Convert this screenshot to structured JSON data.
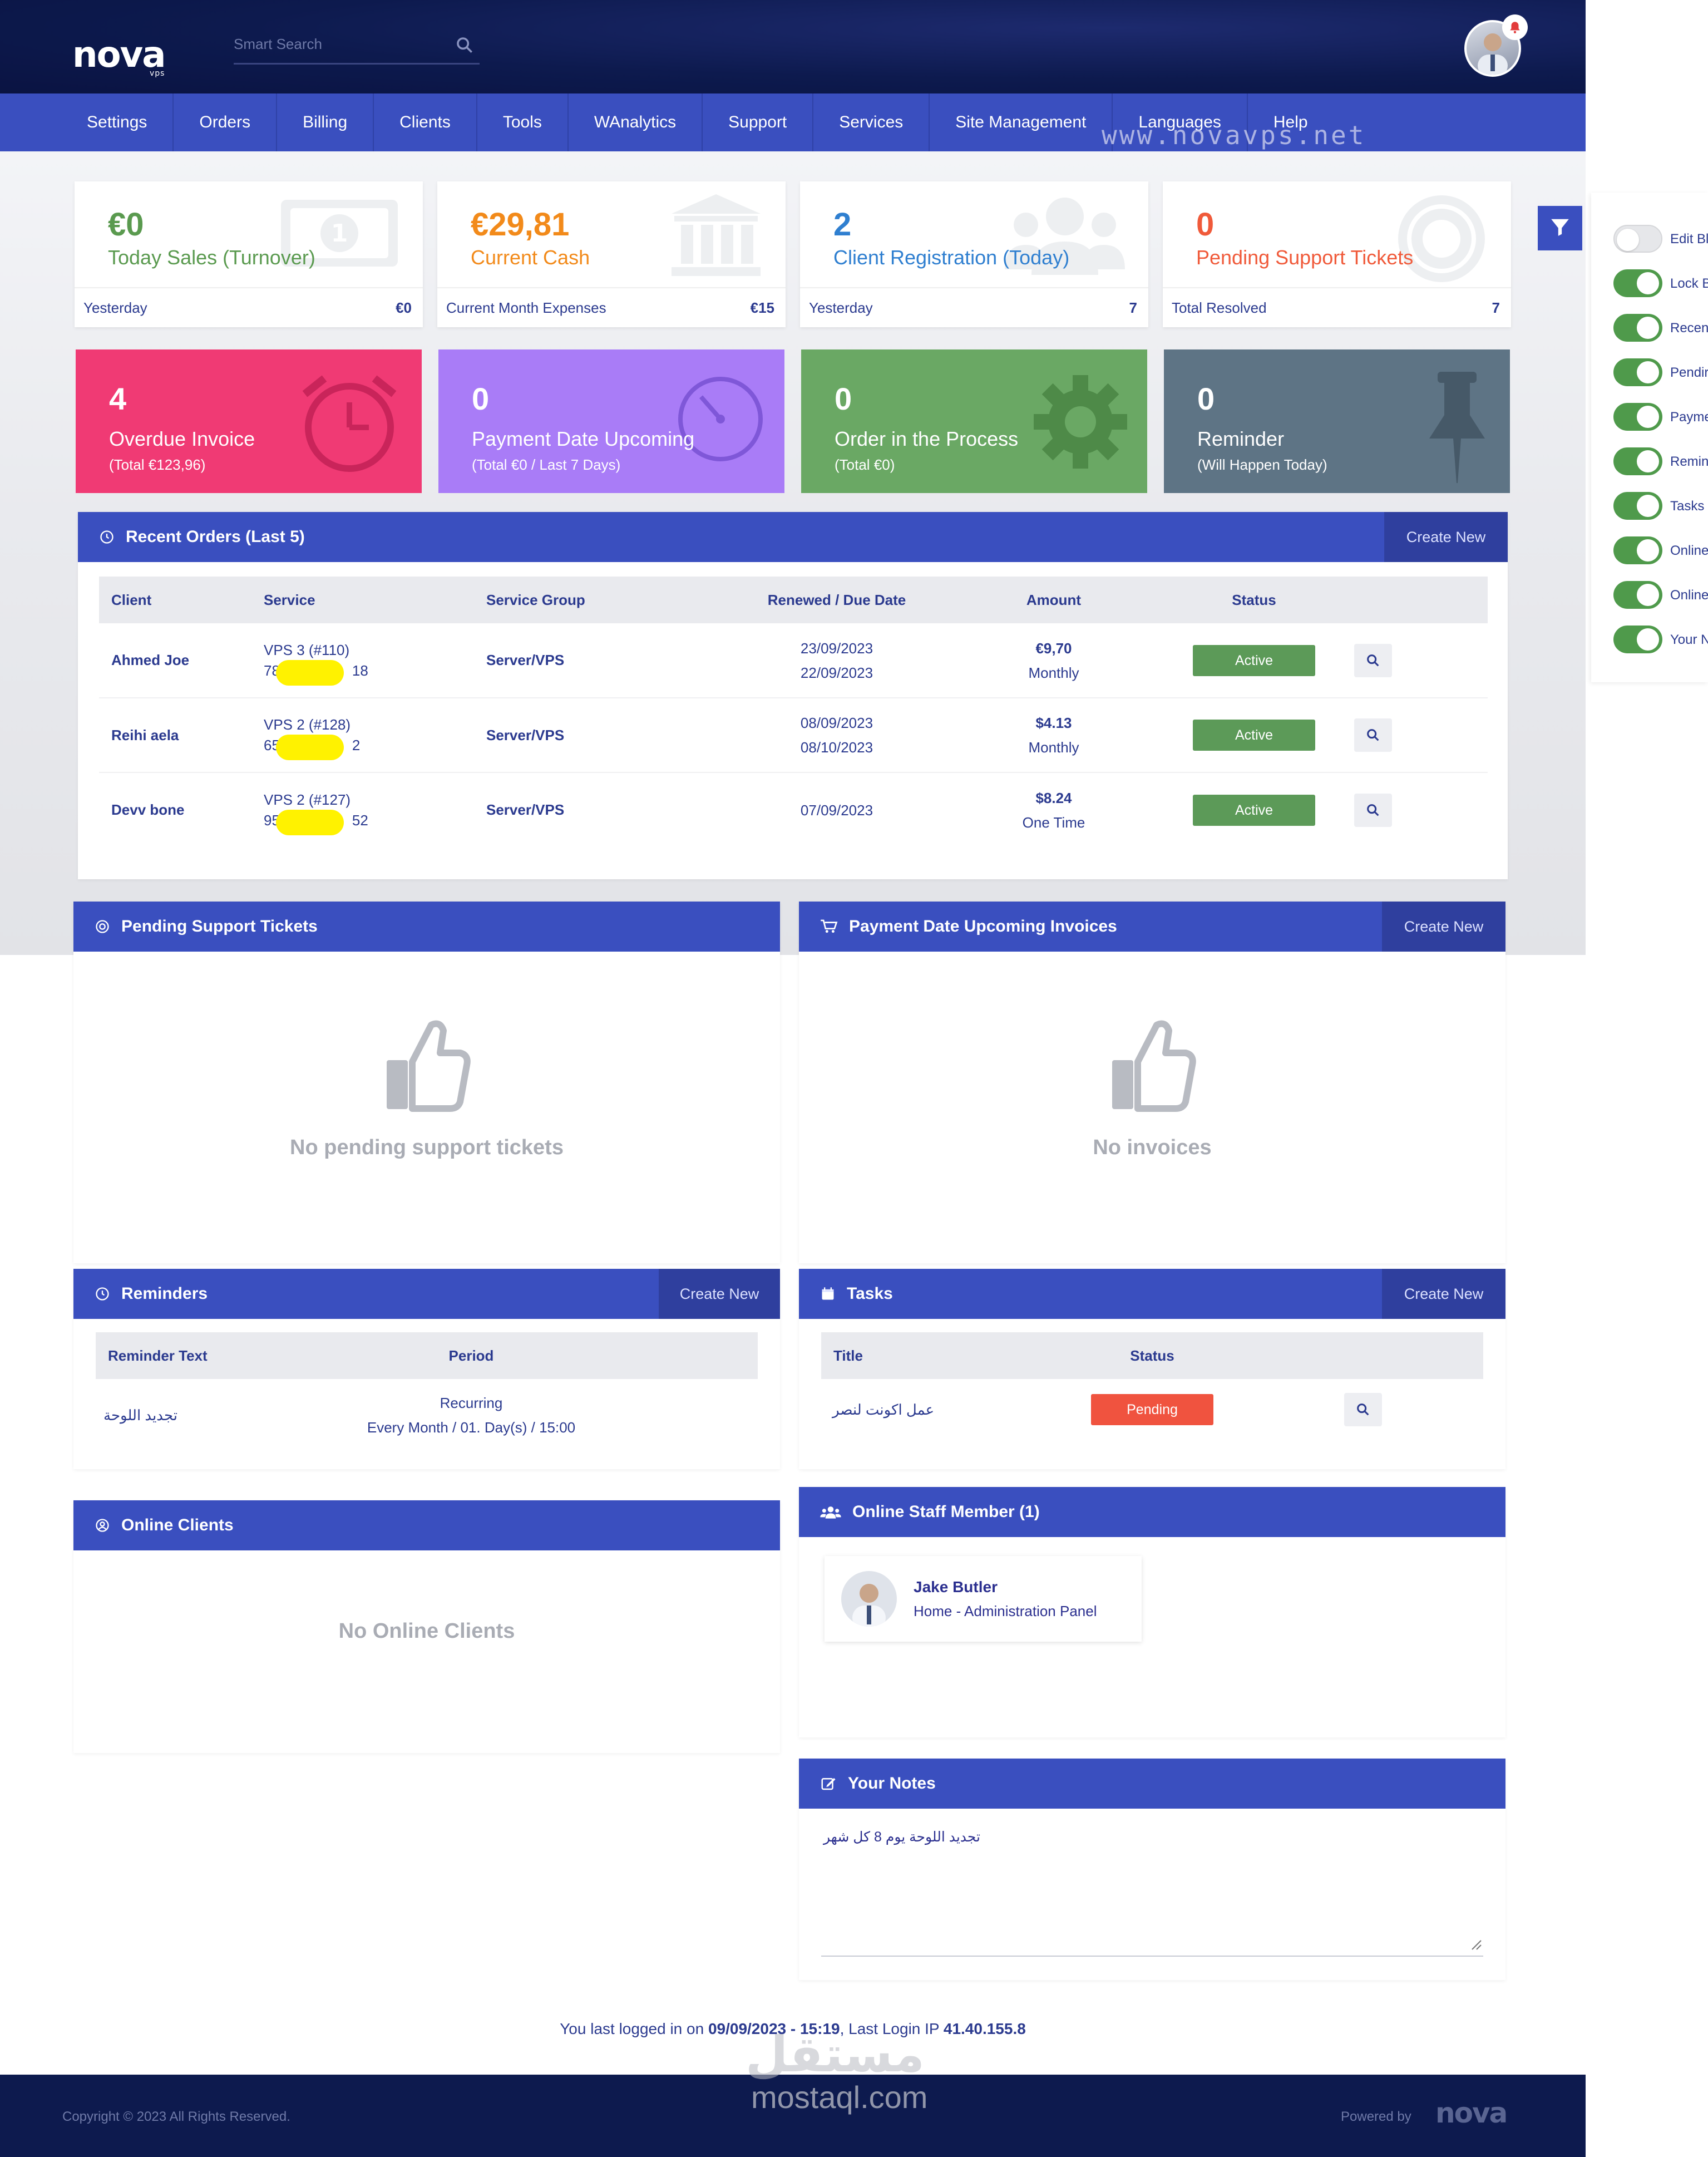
{
  "header": {
    "logo_text": "nova",
    "logo_sub": "vps",
    "search_placeholder": "Smart Search",
    "watermark": "www.novavps.net"
  },
  "nav": {
    "items": [
      "Settings",
      "Orders",
      "Billing",
      "Clients",
      "Tools",
      "WAnalytics",
      "Support",
      "Services",
      "Site Management",
      "Languages",
      "Help"
    ]
  },
  "stats": [
    {
      "value": "€0",
      "label": "Today Sales (Turnover)",
      "foot_label": "Yesterday",
      "foot_value": "€0",
      "color": "#5a9a4f"
    },
    {
      "value": "€29,81",
      "label": "Current Cash",
      "foot_label": "Current Month Expenses",
      "foot_value": "€15",
      "color": "#f28a1a"
    },
    {
      "value": "2",
      "label": "Client Registration (Today)",
      "foot_label": "Yesterday",
      "foot_value": "7",
      "color": "#2f7fd0"
    },
    {
      "value": "0",
      "label": "Pending Support Tickets",
      "foot_label": "Total Resolved",
      "foot_value": "7",
      "color": "#f05a3a"
    }
  ],
  "color_cards": [
    {
      "value": "4",
      "label": "Overdue Invoice",
      "sub": "(Total €123,96)",
      "color": "#f03a74"
    },
    {
      "value": "0",
      "label": "Payment Date Upcoming",
      "sub": "(Total €0 / Last 7 Days)",
      "color": "#a97cf7"
    },
    {
      "value": "0",
      "label": "Order in the Process",
      "sub": "(Total €0)",
      "color": "#6aa864"
    },
    {
      "value": "0",
      "label": "Reminder",
      "sub": "(Will Happen Today)",
      "color": "#5e7485"
    }
  ],
  "recent_orders": {
    "title": "Recent Orders (Last 5)",
    "create": "Create New",
    "columns": [
      "Client",
      "Service",
      "Service Group",
      "Renewed / Due Date",
      "Amount",
      "Status"
    ],
    "rows": [
      {
        "client": "Ahmed Joe",
        "service": "VPS 3 (#110)",
        "ip_start": "78",
        "ip_end": "18",
        "group": "Server/VPS",
        "date1": "23/09/2023",
        "date2": "22/09/2023",
        "amount": "€9,70",
        "cycle": "Monthly",
        "status": "Active"
      },
      {
        "client": "Reihi aela",
        "service": "VPS 2 (#128)",
        "ip_start": "65",
        "ip_end": "2",
        "group": "Server/VPS",
        "date1": "08/09/2023",
        "date2": "08/10/2023",
        "amount": "$4.13",
        "cycle": "Monthly",
        "status": "Active"
      },
      {
        "client": "Devv bone",
        "service": "VPS 2 (#127)",
        "ip_start": "95",
        "ip_end": "52",
        "group": "Server/VPS",
        "date1": "07/09/2023",
        "date2": "",
        "amount": "$8.24",
        "cycle": "One Time",
        "status": "Active"
      }
    ]
  },
  "pending_tickets": {
    "title": "Pending Support Tickets",
    "empty": "No pending support tickets"
  },
  "upcoming_invoices": {
    "title": "Payment Date Upcoming Invoices",
    "create": "Create New",
    "empty": "No invoices"
  },
  "reminders": {
    "title": "Reminders",
    "create": "Create New",
    "columns": [
      "Reminder Text",
      "Period"
    ],
    "rows": [
      {
        "text": "تجديد اللوحة",
        "period1": "Recurring",
        "period2": "Every Month / 01. Day(s) / 15:00"
      }
    ]
  },
  "tasks": {
    "title": "Tasks",
    "create": "Create New",
    "columns": [
      "Title",
      "Status"
    ],
    "rows": [
      {
        "title": "عمل اكونت لنصر",
        "status": "Pending"
      }
    ]
  },
  "online_clients": {
    "title": "Online Clients",
    "empty": "No Online Clients"
  },
  "online_staff": {
    "title": "Online Staff Member (1)",
    "name": "Jake Butler",
    "location": "Home - Administration Panel"
  },
  "notes": {
    "title": "Your Notes",
    "text": "تجديد اللوحة يوم 8 كل شهر"
  },
  "last_login": {
    "prefix": "You last logged in on ",
    "datetime": "09/09/2023 - 15:19",
    "middle": ", Last Login IP ",
    "ip": "41.40.155.8"
  },
  "toggles": [
    {
      "label": "Edit Bl",
      "on": false
    },
    {
      "label": "Lock B",
      "on": true
    },
    {
      "label": "Recen",
      "on": true
    },
    {
      "label": "Pendir",
      "on": true
    },
    {
      "label": "Payme",
      "on": true
    },
    {
      "label": "Remin",
      "on": true
    },
    {
      "label": "Tasks",
      "on": true
    },
    {
      "label": "Online",
      "on": true
    },
    {
      "label": "Online",
      "on": true
    },
    {
      "label": "Your N",
      "on": true
    }
  ],
  "footer": {
    "copyright": "Copyright © 2023 All Rights Reserved.",
    "powered": "Powered by",
    "site_wm_arabic": "مستقل",
    "site_wm": "mostaql.com"
  },
  "colors": {
    "primary": "#3a4fbf",
    "active": "#5c9a58",
    "pending": "#f0533f",
    "navy": "#0d1a4e"
  }
}
